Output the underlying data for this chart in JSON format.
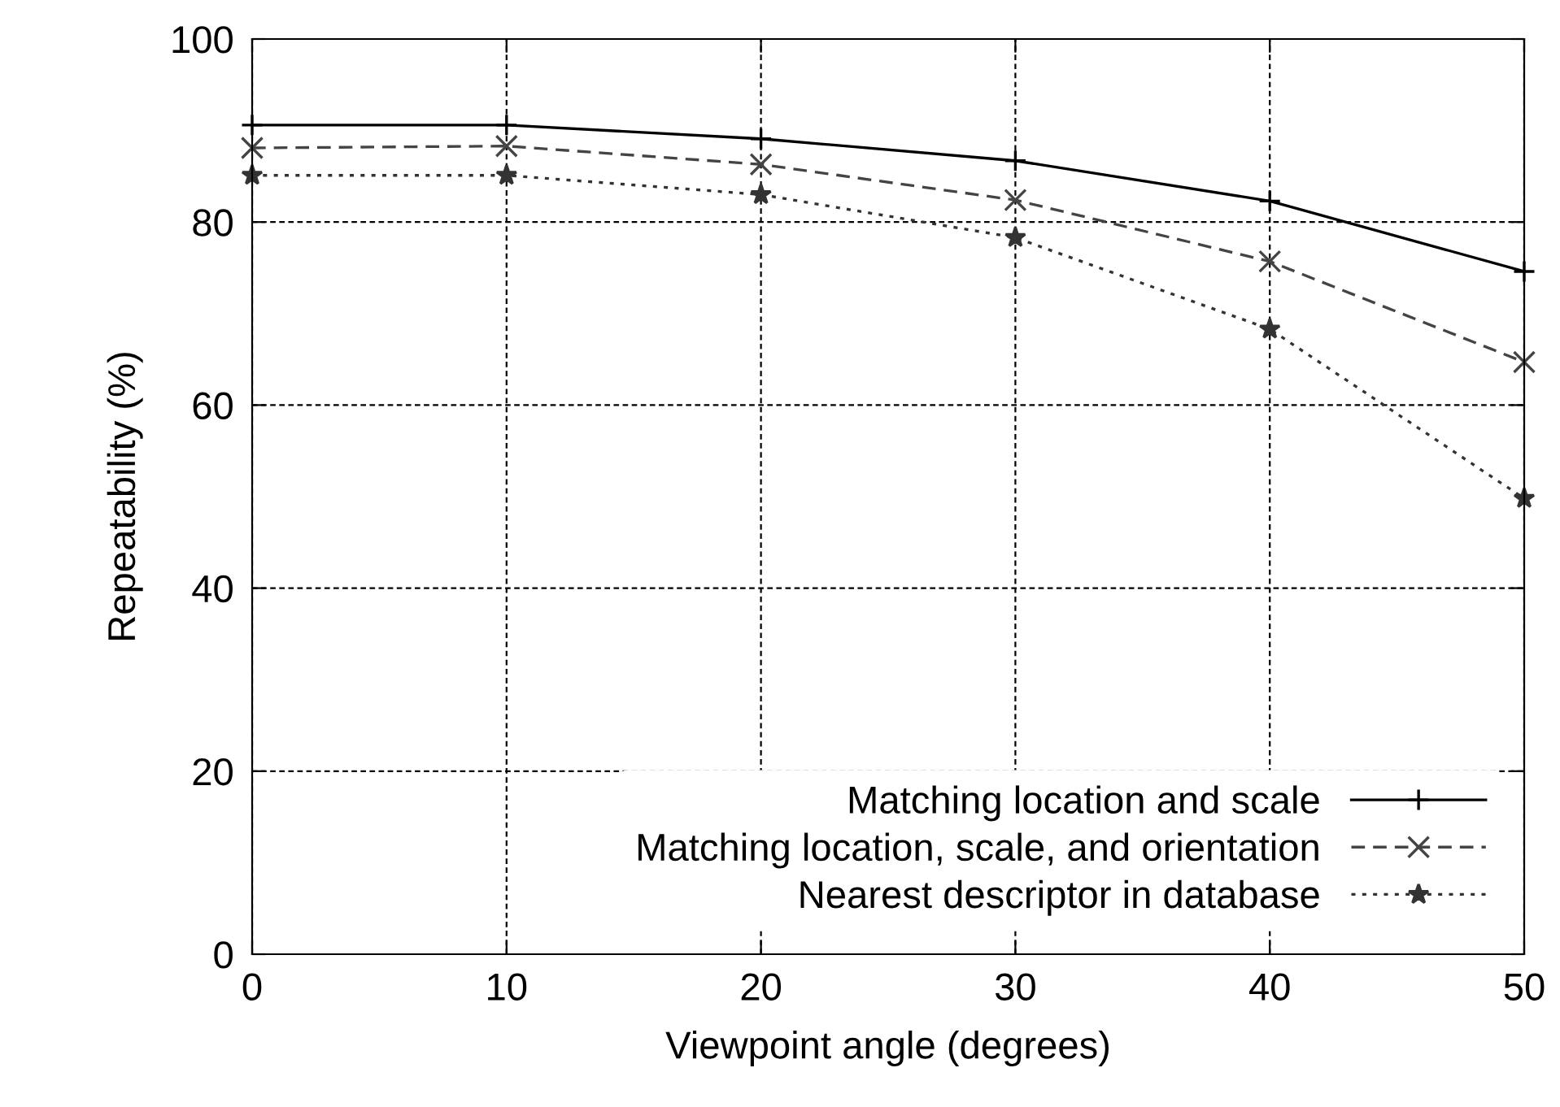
{
  "chart_data": {
    "type": "line",
    "xlabel": "Viewpoint angle (degrees)",
    "ylabel": "Repeatability (%)",
    "x": [
      0,
      10,
      20,
      30,
      40,
      50
    ],
    "series": [
      {
        "name": "Matching location and scale",
        "color": "#000000",
        "values": [
          90.6,
          90.6,
          89.1,
          86.7,
          82.3,
          74.6
        ],
        "marker": "plus",
        "line_style": "solid"
      },
      {
        "name": "Matching location, scale, and orientation",
        "color": "#444444",
        "values": [
          88.1,
          88.3,
          86.3,
          82.4,
          75.7,
          64.7
        ],
        "marker": "cross",
        "line_style": "dashed"
      },
      {
        "name": "Nearest descriptor in database",
        "color": "#333333",
        "values": [
          85.1,
          85.1,
          83.0,
          78.3,
          68.3,
          49.8
        ],
        "marker": "star",
        "line_style": "dotted"
      }
    ],
    "xlim": [
      0,
      50
    ],
    "xticks": [
      0,
      10,
      20,
      30,
      40,
      50
    ],
    "ylim": [
      0,
      100
    ],
    "yticks": [
      0,
      20,
      40,
      60,
      80,
      100
    ],
    "grid": true,
    "legend": "bottom right"
  }
}
